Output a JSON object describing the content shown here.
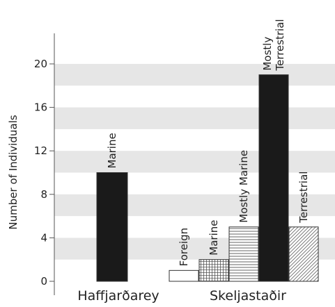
{
  "chart_data": {
    "type": "bar",
    "ylabel": "Number of Individuals",
    "ylim": [
      0,
      20
    ],
    "yticks": [
      "0",
      "4",
      "8",
      "12",
      "16",
      "20"
    ],
    "yticks_values": [
      0,
      4,
      8,
      12,
      16,
      20
    ],
    "grid": "horizontal bands",
    "groups": [
      {
        "name": "Haffjarðarey",
        "bars": [
          {
            "label": "Marine",
            "value": 10,
            "fill": "solid-black"
          }
        ]
      },
      {
        "name": "Skeljastaðir",
        "bars": [
          {
            "label": "Foreign",
            "value": 1,
            "fill": "white"
          },
          {
            "label": "Marine",
            "value": 2,
            "fill": "grid-hatch"
          },
          {
            "label": "Mostly Marine",
            "value": 5,
            "fill": "horizontal-hatch"
          },
          {
            "label": [
              "Mostly",
              "Terrestrial"
            ],
            "value": 19,
            "fill": "solid-black"
          },
          {
            "label": "Terrestrial",
            "value": 5,
            "fill": "diagonal-hatch"
          }
        ]
      }
    ]
  },
  "colors": {
    "band": "#e6e6e6",
    "bar_black": "#1a1a1a",
    "stroke": "#333333"
  }
}
